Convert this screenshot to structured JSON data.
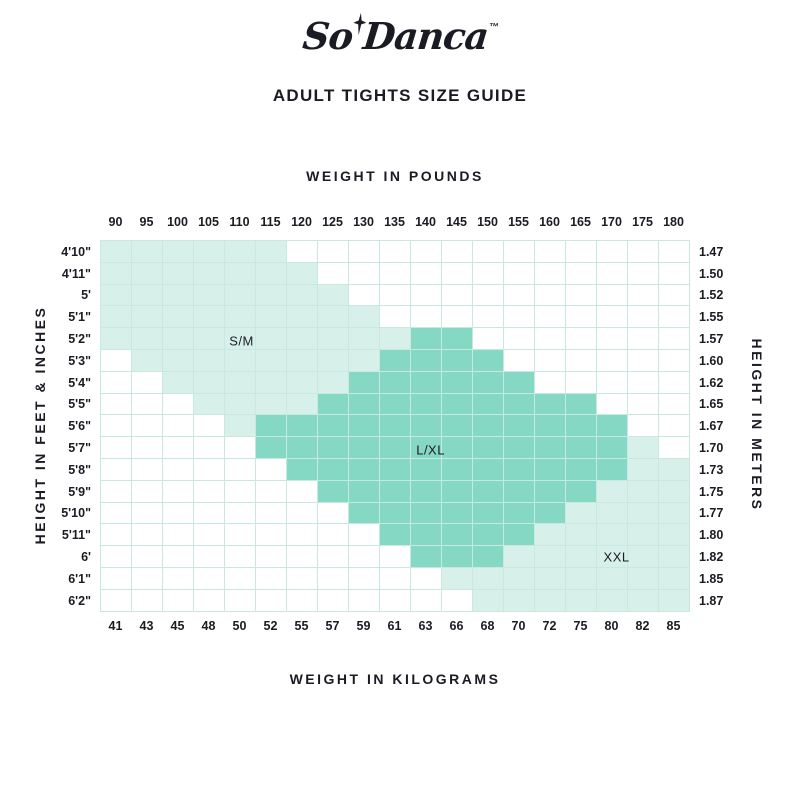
{
  "logo": {
    "part1": "So",
    "part2": "Danca",
    "trademark": "™"
  },
  "title": "ADULT TIGHTS SIZE GUIDE",
  "chart_data": {
    "type": "heatmap",
    "title": "ADULT TIGHTS SIZE GUIDE",
    "x_top": {
      "label": "WEIGHT IN POUNDS",
      "ticks": [
        "90",
        "95",
        "100",
        "105",
        "110",
        "115",
        "120",
        "125",
        "130",
        "135",
        "140",
        "145",
        "150",
        "155",
        "160",
        "165",
        "170",
        "175",
        "180"
      ]
    },
    "x_bottom": {
      "label": "WEIGHT IN KILOGRAMS",
      "ticks": [
        "41",
        "43",
        "45",
        "48",
        "50",
        "52",
        "55",
        "57",
        "59",
        "61",
        "63",
        "66",
        "68",
        "70",
        "72",
        "75",
        "80",
        "82",
        "85"
      ]
    },
    "y_left": {
      "label": "HEIGHT IN FEET & INCHES",
      "ticks": [
        "4'10\"",
        "4'11\"",
        "5'",
        "5'1\"",
        "5'2\"",
        "5'3\"",
        "5'4\"",
        "5'5\"",
        "5'6\"",
        "5'7\"",
        "5'8\"",
        "5'9\"",
        "5'10\"",
        "5'11\"",
        "6'",
        "6'1\"",
        "6'2\""
      ]
    },
    "y_right": {
      "label": "HEIGHT IN METERS",
      "ticks": [
        "1.47",
        "1.50",
        "1.52",
        "1.55",
        "1.57",
        "1.60",
        "1.62",
        "1.65",
        "1.67",
        "1.70",
        "1.73",
        "1.75",
        "1.77",
        "1.80",
        "1.82",
        "1.85",
        "1.87"
      ]
    },
    "cell_value_key": {
      "0": "empty",
      "1": "light",
      "2": "dark"
    },
    "grid": [
      "1111110000000000000",
      "1111111000000000000",
      "1111111100000000000",
      "1111111110000000000",
      "1111111111220000000",
      "0111111112222000000",
      "0011111122222200000",
      "0001111222222222000",
      "0000122222222222200",
      "0000022222222222210",
      "0000002222222222211",
      "0000000222222222111",
      "0000000022222221111",
      "0000000002222211111",
      "0000000000222111111",
      "0000000000011111111",
      "0000000000001111111"
    ],
    "region_labels": [
      {
        "text": "S/M",
        "col": 4.5,
        "row": 4.55
      },
      {
        "text": "L/XL",
        "col": 10.6,
        "row": 9.55
      },
      {
        "text": "XXL",
        "col": 16.6,
        "row": 14.45
      }
    ],
    "colors": {
      "light": "#d7f0e9",
      "dark": "#85d8c4",
      "gridline": "#c7e9e0",
      "background": "#ffffff",
      "text": "#1b1b24"
    }
  }
}
